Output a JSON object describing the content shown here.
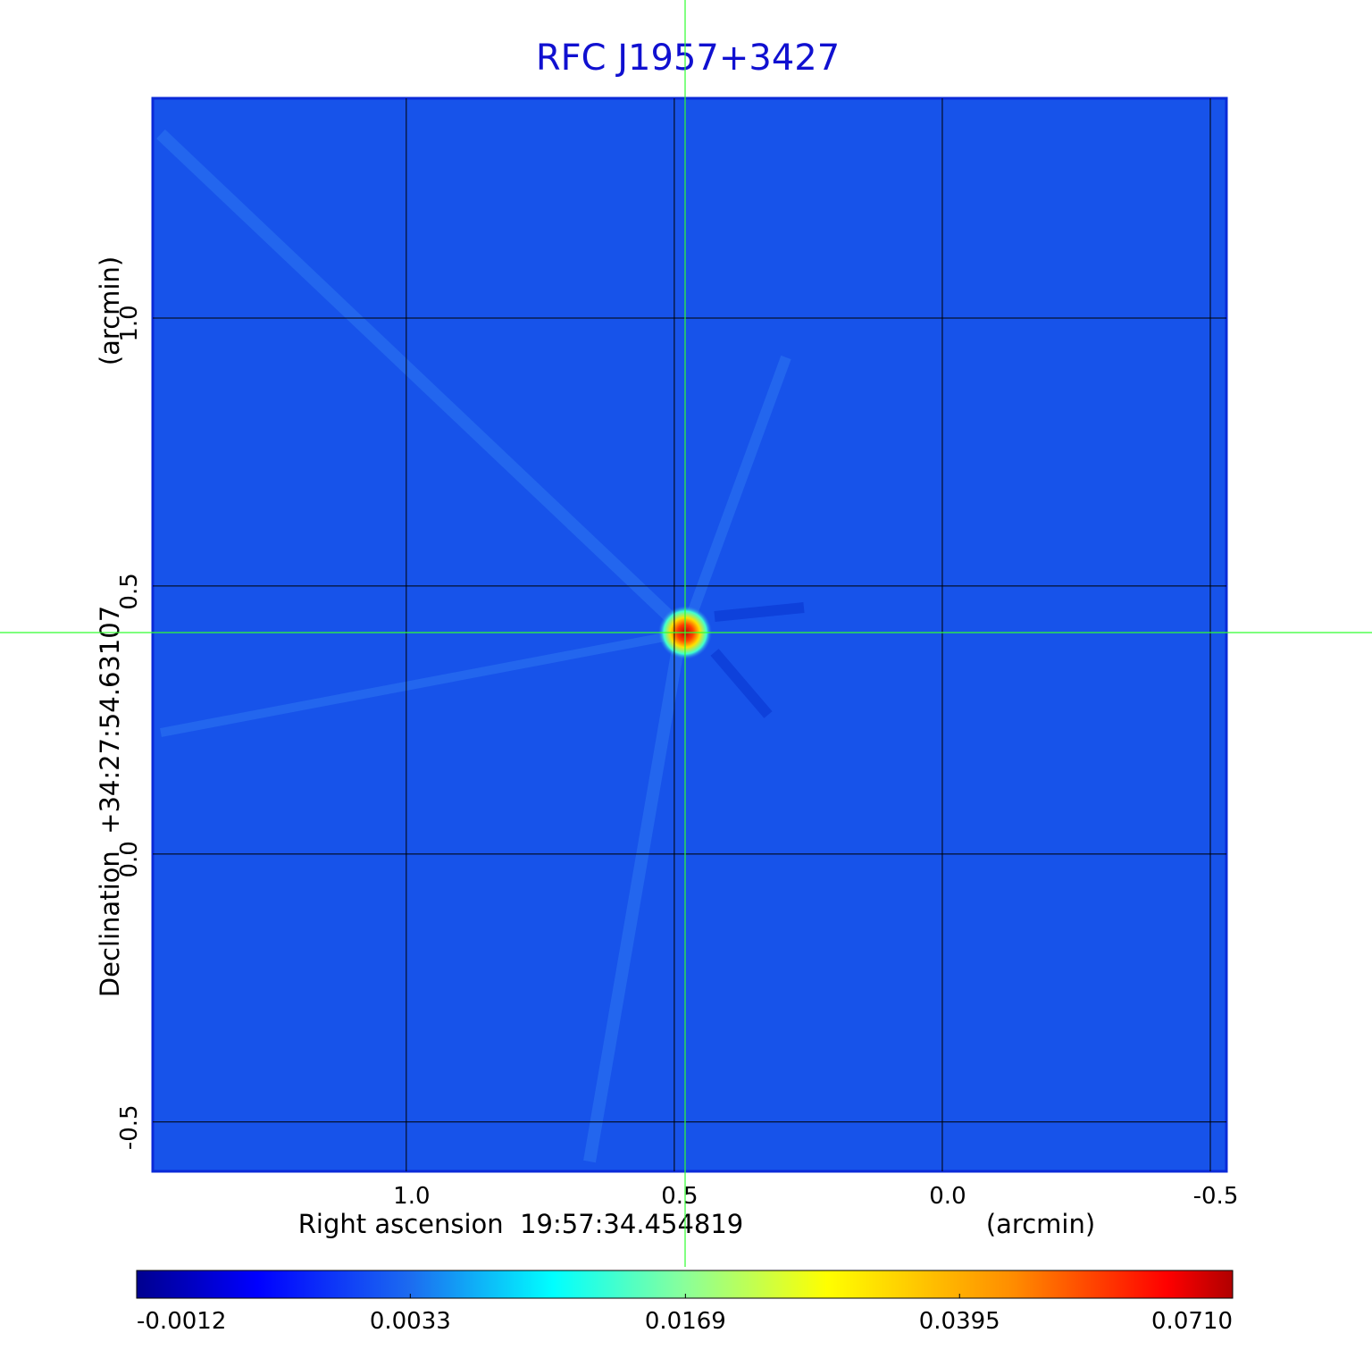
{
  "chart_data": {
    "type": "image",
    "title": "RFC J1957+3427",
    "xlabel": "Right ascension  19:57:34.454819",
    "xunit": "(arcmin)",
    "ylabel": "Declination  +34:27:54.63107",
    "yunit": "(arcmin)",
    "xlim": [
      1.473,
      -0.53
    ],
    "xticks": [
      {
        "value": 1,
        "label": "1.0"
      },
      0.5,
      {
        "value": 0,
        "label": "0.0"
      },
      -0.5
    ],
    "ylim": [
      -0.592,
      1.41
    ],
    "yticks": [
      {
        "value": 1,
        "label": "1.0"
      },
      0.5,
      {
        "value": 0,
        "label": "0.0"
      },
      -0.5
    ],
    "grid": true,
    "colorbar": {
      "scale": "sqrt",
      "lim": [
        -0.0012,
        0.071
      ],
      "ticks": [
        -0.0012,
        0.0033,
        0.0169,
        0.0395,
        {
          "value": 0.071,
          "label": "0.0710"
        }
      ]
    }
  }
}
